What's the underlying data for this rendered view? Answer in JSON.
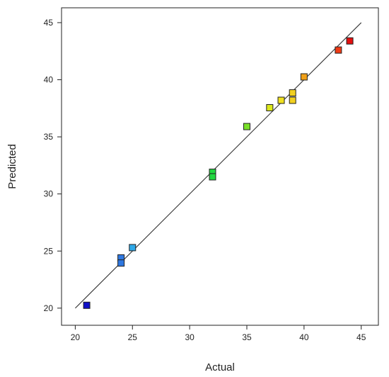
{
  "chart_data": {
    "type": "scatter",
    "title": "",
    "xlabel": "Actual",
    "ylabel": "Predicted",
    "xlim": [
      18.8,
      46.5
    ],
    "ylim": [
      18.5,
      46.3
    ],
    "xticks": [
      20,
      25,
      30,
      35,
      40,
      45
    ],
    "yticks": [
      20,
      25,
      30,
      35,
      40,
      45
    ],
    "grid": false,
    "reference_line": {
      "x": [
        20,
        45
      ],
      "y": [
        20,
        45
      ]
    },
    "points": [
      {
        "x": 21,
        "y": 20.25,
        "color": "#1010c8"
      },
      {
        "x": 24,
        "y": 24.4,
        "color": "#2f78e0"
      },
      {
        "x": 24,
        "y": 23.95,
        "color": "#2f78e0"
      },
      {
        "x": 25,
        "y": 25.3,
        "color": "#2ea8e8"
      },
      {
        "x": 32,
        "y": 31.9,
        "color": "#22d840"
      },
      {
        "x": 32,
        "y": 31.5,
        "color": "#22d840"
      },
      {
        "x": 35,
        "y": 35.9,
        "color": "#78e028"
      },
      {
        "x": 37,
        "y": 37.55,
        "color": "#dce81c"
      },
      {
        "x": 38,
        "y": 38.2,
        "color": "#f0e020"
      },
      {
        "x": 39,
        "y": 38.85,
        "color": "#f2d020"
      },
      {
        "x": 39,
        "y": 38.2,
        "color": "#f2d020"
      },
      {
        "x": 40,
        "y": 40.25,
        "color": "#f0a018"
      },
      {
        "x": 43,
        "y": 42.6,
        "color": "#f03a14"
      },
      {
        "x": 44,
        "y": 43.4,
        "color": "#e41010"
      }
    ]
  }
}
